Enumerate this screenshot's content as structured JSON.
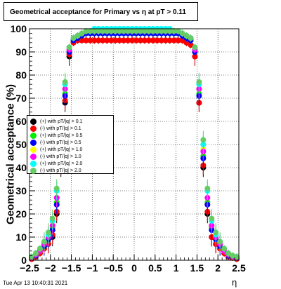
{
  "chart_data": {
    "type": "scatter",
    "title": "Geometrical acceptance for Primary vs   η at pT  > 0.11",
    "xlabel": "η",
    "ylabel": "Geometrical acceptance (%)",
    "xlim": [
      -2.5,
      2.5
    ],
    "ylim": [
      0,
      100
    ],
    "xticks": [
      "−2.5",
      "−2",
      "−1.5",
      "−1",
      "−0.5",
      "0",
      "0.5",
      "1",
      "1.5",
      "2",
      "2.5"
    ],
    "yticks": [
      "0",
      "10",
      "20",
      "30",
      "40",
      "50",
      "60",
      "70",
      "80",
      "90",
      "100"
    ],
    "grid": true,
    "legend_position": "left",
    "x": [
      -2.45,
      -2.35,
      -2.25,
      -2.15,
      -2.05,
      -1.95,
      -1.85,
      -1.75,
      -1.65,
      -1.55,
      -1.45,
      -1.35,
      -1.25,
      -1.15,
      -1.05,
      -0.95,
      -0.85,
      -0.75,
      -0.65,
      -0.55,
      -0.45,
      -0.35,
      -0.25,
      -0.15,
      -0.05,
      0.05,
      0.15,
      0.25,
      0.35,
      0.45,
      0.55,
      0.65,
      0.75,
      0.85,
      0.95,
      1.05,
      1.15,
      1.25,
      1.35,
      1.45,
      1.55,
      1.65,
      1.75,
      1.85,
      1.95,
      2.05,
      2.15,
      2.25,
      2.35,
      2.45
    ],
    "series": [
      {
        "name": "(+) with pT/|q| > 0.1",
        "color": "#000000",
        "values": [
          0.5,
          1.5,
          3,
          5,
          7,
          10,
          20,
          40,
          68,
          88,
          94,
          95,
          95,
          95,
          95,
          95,
          95,
          95,
          95,
          95,
          95,
          95,
          95,
          95,
          95,
          95,
          95,
          95,
          95,
          95,
          95,
          95,
          95,
          95,
          95,
          95,
          95,
          94,
          93,
          88,
          68,
          40,
          20,
          10,
          7,
          5,
          3,
          1.5,
          1,
          0.5
        ]
      },
      {
        "name": "(-) with pT/|q| > 0.1",
        "color": "#ff0000",
        "values": [
          0.5,
          1.5,
          3,
          5,
          7,
          11,
          21,
          41,
          69,
          89,
          94,
          95,
          95,
          95,
          95,
          95,
          95,
          95,
          95,
          95,
          95,
          95,
          95,
          95,
          95,
          95,
          95,
          95,
          95,
          95,
          95,
          95,
          95,
          95,
          95,
          95,
          95,
          94,
          93,
          88,
          68,
          41,
          21,
          10,
          7,
          5,
          3,
          1.5,
          1,
          0.5
        ]
      },
      {
        "name": "(+) with pT/|q| > 0.5",
        "color": "#00ee00",
        "values": [
          1,
          2,
          4,
          6,
          9,
          14,
          25,
          45,
          72,
          90,
          95,
          96,
          97,
          98,
          98,
          98,
          98,
          98,
          98,
          98,
          98,
          98,
          98,
          98,
          98,
          98,
          98,
          98,
          98,
          98,
          98,
          98,
          98,
          98,
          98,
          98,
          97,
          96,
          95,
          90,
          72,
          45,
          25,
          14,
          9,
          6,
          4,
          2,
          1.5,
          1
        ]
      },
      {
        "name": "(-) with pT/|q| > 0.5",
        "color": "#0000ff",
        "values": [
          1,
          2,
          4,
          6,
          9,
          13,
          24,
          44,
          71,
          90,
          95,
          96,
          97,
          98,
          98,
          98,
          98,
          98,
          98,
          98,
          98,
          98,
          98,
          98,
          98,
          98,
          98,
          98,
          98,
          98,
          98,
          98,
          98,
          98,
          98,
          98,
          97,
          96,
          95,
          90,
          71,
          44,
          24,
          13,
          9,
          6,
          4,
          2,
          1.5,
          1
        ]
      },
      {
        "name": "(+) with pT/|q| > 1.0",
        "color": "#ffff00",
        "values": [
          1,
          2.5,
          4,
          7,
          10,
          15,
          27,
          48,
          74,
          91,
          96,
          97,
          98,
          99,
          99,
          99,
          99,
          99,
          99,
          99,
          99,
          99,
          99,
          99,
          99,
          99,
          99,
          99,
          99,
          99,
          99,
          99,
          99,
          99,
          99,
          99,
          98,
          97,
          96,
          91,
          74,
          48,
          27,
          15,
          10,
          7,
          4,
          2.5,
          1.5,
          1
        ]
      },
      {
        "name": "(-) with pT/|q| > 1.0",
        "color": "#ff00ff",
        "values": [
          1,
          2.5,
          4,
          7,
          10,
          15,
          27,
          47,
          74,
          91,
          96,
          97,
          98,
          99,
          99,
          99,
          99,
          99,
          99,
          99,
          99,
          99,
          99,
          99,
          99,
          99,
          99,
          99,
          99,
          99,
          99,
          99,
          99,
          99,
          99,
          99,
          98,
          97,
          96,
          91,
          74,
          47,
          27,
          15,
          10,
          7,
          4,
          2.5,
          1.5,
          1
        ]
      },
      {
        "name": "(+) with pT/|q| > 2.0",
        "color": "#00ffff",
        "values": [
          1.5,
          3,
          5,
          8,
          11,
          17,
          30,
          50,
          76,
          92,
          96,
          97,
          98,
          99,
          99,
          100,
          100,
          100,
          100,
          100,
          100,
          100,
          100,
          100,
          100,
          100,
          100,
          100,
          100,
          100,
          100,
          100,
          100,
          100,
          99,
          99,
          98,
          97,
          96,
          92,
          76,
          50,
          30,
          17,
          11,
          8,
          5,
          3,
          2,
          1.5
        ]
      },
      {
        "name": "(-) with pT/|q| > 2.0",
        "color": "#66cc66",
        "values": [
          1.5,
          3,
          5,
          8,
          12,
          18,
          31,
          52,
          77,
          92,
          96,
          97,
          98,
          99,
          99,
          99,
          99,
          99,
          99,
          99,
          99,
          99,
          99,
          99,
          99,
          99,
          99,
          99,
          99,
          99,
          99,
          99,
          99,
          99,
          99,
          99,
          98,
          97,
          96,
          92,
          77,
          52,
          31,
          18,
          12,
          8,
          5,
          3,
          2,
          1.5
        ]
      }
    ]
  },
  "footer": {
    "timestamp": "Tue Apr 13 10:40:31 2021"
  }
}
